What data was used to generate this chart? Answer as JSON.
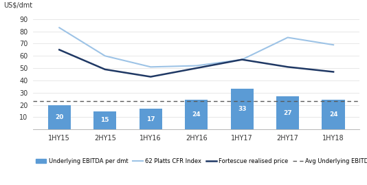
{
  "categories": [
    "1HY15",
    "2HY15",
    "1HY16",
    "2HY16",
    "1HY17",
    "2HY17",
    "1HY18"
  ],
  "ebitda_values": [
    20,
    15,
    17,
    24,
    33,
    27,
    24
  ],
  "platts_cfr": [
    83,
    60,
    51,
    52,
    57,
    75,
    69
  ],
  "fortescue_realised": [
    65,
    49,
    43,
    50,
    57,
    51,
    47
  ],
  "avg_ebitda": 23,
  "bar_color": "#5B9BD5",
  "platts_color": "#9DC3E6",
  "fortescue_color": "#1F3864",
  "avg_color": "#595959",
  "ylabel": "US$/dmt",
  "ylim_min": 0,
  "ylim_max": 95,
  "yticks": [
    10,
    20,
    30,
    40,
    50,
    60,
    70,
    80,
    90
  ],
  "legend_labels": [
    "Underlying EBITDA per dmt",
    "62 Platts CFR Index",
    "Fortescue realised price",
    "Avg Underlying EBITDA per dmt"
  ],
  "background_color": "#ffffff",
  "bar_label_fontsize": 6.5,
  "bar_label_color": "#ffffff",
  "ylabel_fontsize": 7,
  "tick_fontsize": 7,
  "legend_fontsize": 6,
  "bar_width": 0.5,
  "dot_marker": "-"
}
